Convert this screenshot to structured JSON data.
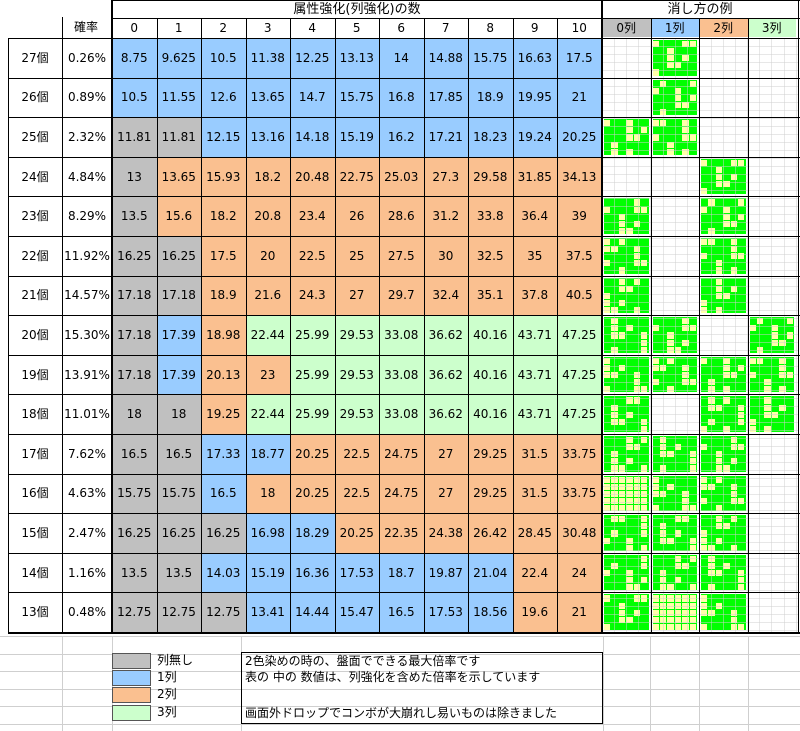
{
  "header": {
    "prob_label": "確率",
    "attr_title": "属性強化(列強化)の数",
    "example_title": "消し方の例",
    "cols": [
      "0",
      "1",
      "2",
      "3",
      "4",
      "5",
      "6",
      "7",
      "8",
      "9",
      "10"
    ],
    "example_cols": [
      "0列",
      "1列",
      "2列",
      "3列"
    ]
  },
  "colors": {
    "gray": "#c0c0c0",
    "blue": "#99ccff",
    "orange": "#fac090",
    "green": "#ccffcc",
    "patgreen": "#00ff00",
    "patyellow": "#ffffaa",
    "head_blue": "#99ccff",
    "head_orange": "#fac090",
    "head_green": "#ccffcc",
    "head_gray": "#c0c0c0"
  },
  "rows": [
    {
      "count": "27個",
      "prob": "0.26%",
      "values": [
        "8.75",
        "9.625",
        "10.5",
        "11.38",
        "12.25",
        "13.13",
        "14",
        "14.88",
        "15.75",
        "16.63",
        "17.5"
      ],
      "fill": [
        "b",
        "b",
        "b",
        "b",
        "b",
        "b",
        "b",
        "b",
        "b",
        "b",
        "b"
      ]
    },
    {
      "count": "26個",
      "prob": "0.89%",
      "values": [
        "10.5",
        "11.55",
        "12.6",
        "13.65",
        "14.7",
        "15.75",
        "16.8",
        "17.85",
        "18.9",
        "19.95",
        "21"
      ],
      "fill": [
        "b",
        "b",
        "b",
        "b",
        "b",
        "b",
        "b",
        "b",
        "b",
        "b",
        "b"
      ]
    },
    {
      "count": "25個",
      "prob": "2.32%",
      "values": [
        "11.81",
        "11.81",
        "12.15",
        "13.16",
        "14.18",
        "15.19",
        "16.2",
        "17.21",
        "18.23",
        "19.24",
        "20.25"
      ],
      "fill": [
        "g",
        "g",
        "b",
        "b",
        "b",
        "b",
        "b",
        "b",
        "b",
        "b",
        "b"
      ]
    },
    {
      "count": "24個",
      "prob": "4.84%",
      "values": [
        "13",
        "13.65",
        "15.93",
        "18.2",
        "20.48",
        "22.75",
        "25.03",
        "27.3",
        "29.58",
        "31.85",
        "34.13"
      ],
      "fill": [
        "g",
        "o",
        "o",
        "o",
        "o",
        "o",
        "o",
        "o",
        "o",
        "o",
        "o"
      ]
    },
    {
      "count": "23個",
      "prob": "8.29%",
      "values": [
        "13.5",
        "15.6",
        "18.2",
        "20.8",
        "23.4",
        "26",
        "28.6",
        "31.2",
        "33.8",
        "36.4",
        "39"
      ],
      "fill": [
        "g",
        "o",
        "o",
        "o",
        "o",
        "o",
        "o",
        "o",
        "o",
        "o",
        "o"
      ]
    },
    {
      "count": "22個",
      "prob": "11.92%",
      "values": [
        "16.25",
        "16.25",
        "17.5",
        "20",
        "22.5",
        "25",
        "27.5",
        "30",
        "32.5",
        "35",
        "37.5"
      ],
      "fill": [
        "g",
        "g",
        "o",
        "o",
        "o",
        "o",
        "o",
        "o",
        "o",
        "o",
        "o"
      ]
    },
    {
      "count": "21個",
      "prob": "14.57%",
      "values": [
        "17.18",
        "17.18",
        "18.9",
        "21.6",
        "24.3",
        "27",
        "29.7",
        "32.4",
        "35.1",
        "37.8",
        "40.5"
      ],
      "fill": [
        "g",
        "g",
        "o",
        "o",
        "o",
        "o",
        "o",
        "o",
        "o",
        "o",
        "o"
      ]
    },
    {
      "count": "20個",
      "prob": "15.30%",
      "values": [
        "17.18",
        "17.39",
        "18.98",
        "22.44",
        "25.99",
        "29.53",
        "33.08",
        "36.62",
        "40.16",
        "43.71",
        "47.25"
      ],
      "fill": [
        "g",
        "b",
        "o",
        "l",
        "l",
        "l",
        "l",
        "l",
        "l",
        "l",
        "l"
      ]
    },
    {
      "count": "19個",
      "prob": "13.91%",
      "values": [
        "17.18",
        "17.39",
        "20.13",
        "23",
        "25.99",
        "29.53",
        "33.08",
        "36.62",
        "40.16",
        "43.71",
        "47.25"
      ],
      "fill": [
        "g",
        "b",
        "o",
        "o",
        "l",
        "l",
        "l",
        "l",
        "l",
        "l",
        "l"
      ]
    },
    {
      "count": "18個",
      "prob": "11.01%",
      "values": [
        "18",
        "18",
        "19.25",
        "22.44",
        "25.99",
        "29.53",
        "33.08",
        "36.62",
        "40.16",
        "43.71",
        "47.25"
      ],
      "fill": [
        "g",
        "g",
        "o",
        "l",
        "l",
        "l",
        "l",
        "l",
        "l",
        "l",
        "l"
      ]
    },
    {
      "count": "17個",
      "prob": "7.62%",
      "values": [
        "16.5",
        "16.5",
        "17.33",
        "18.77",
        "20.25",
        "22.5",
        "24.75",
        "27",
        "29.25",
        "31.5",
        "33.75"
      ],
      "fill": [
        "g",
        "g",
        "b",
        "b",
        "o",
        "o",
        "o",
        "o",
        "o",
        "o",
        "o"
      ]
    },
    {
      "count": "16個",
      "prob": "4.63%",
      "values": [
        "15.75",
        "15.75",
        "16.5",
        "18",
        "20.25",
        "22.5",
        "24.75",
        "27",
        "29.25",
        "31.5",
        "33.75"
      ],
      "fill": [
        "g",
        "g",
        "b",
        "o",
        "o",
        "o",
        "o",
        "o",
        "o",
        "o",
        "o"
      ]
    },
    {
      "count": "15個",
      "prob": "2.47%",
      "values": [
        "16.25",
        "16.25",
        "16.25",
        "16.98",
        "18.29",
        "20.25",
        "22.35",
        "24.38",
        "26.42",
        "28.45",
        "30.48"
      ],
      "fill": [
        "g",
        "g",
        "g",
        "b",
        "b",
        "o",
        "o",
        "o",
        "o",
        "o",
        "o"
      ]
    },
    {
      "count": "14個",
      "prob": "1.16%",
      "values": [
        "13.5",
        "13.5",
        "14.03",
        "15.19",
        "16.36",
        "17.53",
        "18.7",
        "19.87",
        "21.04",
        "22.4",
        "24"
      ],
      "fill": [
        "g",
        "g",
        "b",
        "b",
        "b",
        "b",
        "b",
        "b",
        "b",
        "o",
        "o"
      ]
    },
    {
      "count": "13個",
      "prob": "0.48%",
      "values": [
        "12.75",
        "12.75",
        "12.75",
        "13.41",
        "14.44",
        "15.47",
        "16.5",
        "17.53",
        "18.56",
        "19.6",
        "21"
      ],
      "fill": [
        "g",
        "g",
        "g",
        "b",
        "b",
        "b",
        "b",
        "b",
        "b",
        "o",
        "o"
      ]
    }
  ],
  "legend": {
    "items": [
      {
        "label": "列無し",
        "color": "gray"
      },
      {
        "label": "1列",
        "color": "blue"
      },
      {
        "label": "2列",
        "color": "orange"
      },
      {
        "label": "3列",
        "color": "green"
      }
    ],
    "notes": [
      "2色染めの時の、盤面でできる最大倍率です",
      "表の 中の 数値は、列強化を含めた倍率を示しています",
      "画面外ドロップでコンボが大崩れし易いものは除きました"
    ]
  },
  "examples": [
    {
      "row": 0,
      "col": 1
    },
    {
      "row": 1,
      "col": 1
    },
    {
      "row": 2,
      "col": 0
    },
    {
      "row": 2,
      "col": 1
    },
    {
      "row": 3,
      "col": 2
    },
    {
      "row": 4,
      "col": 0
    },
    {
      "row": 4,
      "col": 2
    },
    {
      "row": 5,
      "col": 0
    },
    {
      "row": 5,
      "col": 2
    },
    {
      "row": 6,
      "col": 0
    },
    {
      "row": 6,
      "col": 2
    },
    {
      "row": 7,
      "col": 0
    },
    {
      "row": 7,
      "col": 1
    },
    {
      "row": 7,
      "col": 3
    },
    {
      "row": 8,
      "col": 0
    },
    {
      "row": 8,
      "col": 1
    },
    {
      "row": 8,
      "col": 2
    },
    {
      "row": 8,
      "col": 3
    },
    {
      "row": 9,
      "col": 0
    },
    {
      "row": 9,
      "col": 2
    },
    {
      "row": 9,
      "col": 3
    },
    {
      "row": 10,
      "col": 0
    },
    {
      "row": 10,
      "col": 1
    },
    {
      "row": 10,
      "col": 2
    },
    {
      "row": 11,
      "col": 0
    },
    {
      "row": 11,
      "col": 1
    },
    {
      "row": 11,
      "col": 2
    },
    {
      "row": 12,
      "col": 0
    },
    {
      "row": 12,
      "col": 1
    },
    {
      "row": 12,
      "col": 2
    },
    {
      "row": 13,
      "col": 0
    },
    {
      "row": 13,
      "col": 1
    },
    {
      "row": 13,
      "col": 2
    },
    {
      "row": 14,
      "col": 0
    },
    {
      "row": 14,
      "col": 1
    },
    {
      "row": 14,
      "col": 2
    }
  ]
}
